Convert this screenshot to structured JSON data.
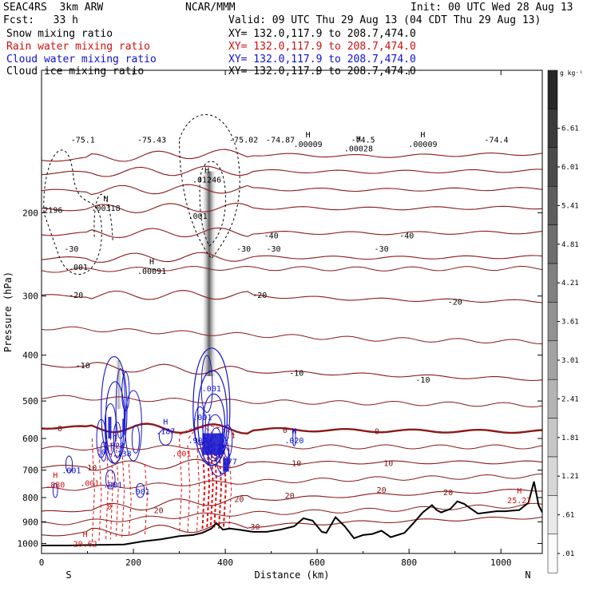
{
  "header": {
    "model": "SEAC4RS  3km ARW",
    "org": "NCAR/MMM",
    "init": "Init: 00 UTC Wed 28 Aug 13",
    "fcst": "Fcst:   33 h",
    "valid": "Valid: 09 UTC Thu 29 Aug 13 (04 CDT Thu 29 Aug 13)",
    "fields": [
      {
        "label": "Snow mixing ratio",
        "xy": "XY= 132.0,117.9 to 208.7,474.0",
        "color": "#000000"
      },
      {
        "label": "Rain water mixing ratio",
        "xy": "XY= 132.0,117.9 to 208.7,474.0",
        "color": "#d01010"
      },
      {
        "label": "Cloud water mixing ratio",
        "xy": "XY= 132.0,117.9 to 208.7,474.0",
        "color": "#1010d0"
      },
      {
        "label": "Cloud ice mixing ratio",
        "xy": "XY= 132.0,117.9 to 208.7,474.0",
        "color": "#000000"
      }
    ]
  },
  "chart_data": {
    "type": "contour",
    "xlabel": "Distance (km)",
    "ylabel": "Pressure (hPa)",
    "xlim": [
      0,
      1090
    ],
    "ylim": [
      1050,
      100
    ],
    "y_scale": "log",
    "x_ticks": [
      0,
      200,
      400,
      600,
      800,
      1000
    ],
    "y_ticks": [
      200,
      300,
      400,
      500,
      600,
      700,
      800,
      900,
      1000
    ],
    "x_end_labels": {
      "left": "S",
      "right": "N"
    },
    "colorbar": {
      "unit": "g kg⁻¹",
      "labels": [
        "6.61",
        "6.01",
        "5.41",
        "4.81",
        "4.21",
        "3.61",
        "3.01",
        "2.41",
        "1.81",
        "1.21",
        ".61",
        ".01"
      ]
    },
    "temperature_isotherms_labels": [
      {
        "text": "-75.1",
        "x": 90,
        "p": 140
      },
      {
        "text": "-75.43",
        "x": 240,
        "p": 140
      },
      {
        "text": "-75.02",
        "x": 440,
        "p": 140
      },
      {
        "text": "-74.87",
        "x": 520,
        "p": 140
      },
      {
        "text": "-74.5",
        "x": 700,
        "p": 140
      },
      {
        "text": "-74.4",
        "x": 990,
        "p": 140
      },
      {
        "text": "-40",
        "x": 500,
        "p": 223
      },
      {
        "text": "-40",
        "x": 795,
        "p": 223
      },
      {
        "text": "-30",
        "x": 65,
        "p": 238
      },
      {
        "text": "-30",
        "x": 440,
        "p": 238
      },
      {
        "text": "-30",
        "x": 505,
        "p": 238
      },
      {
        "text": "-30",
        "x": 740,
        "p": 238
      },
      {
        "text": "-20",
        "x": 75,
        "p": 298
      },
      {
        "text": "-20",
        "x": 475,
        "p": 298
      },
      {
        "text": "-20",
        "x": 900,
        "p": 308
      },
      {
        "text": "-10",
        "x": 90,
        "p": 420
      },
      {
        "text": "-10",
        "x": 555,
        "p": 435
      },
      {
        "text": "-10",
        "x": 830,
        "p": 450
      },
      {
        "text": "0",
        "x": 40,
        "p": 570
      },
      {
        "text": "0",
        "x": 530,
        "p": 575
      },
      {
        "text": "0",
        "x": 730,
        "p": 578
      },
      {
        "text": "10",
        "x": 110,
        "p": 690
      },
      {
        "text": "10",
        "x": 555,
        "p": 675
      },
      {
        "text": "10",
        "x": 755,
        "p": 675
      },
      {
        "text": "20",
        "x": 430,
        "p": 805
      },
      {
        "text": "20",
        "x": 540,
        "p": 790
      },
      {
        "text": "20",
        "x": 740,
        "p": 770
      },
      {
        "text": "20",
        "x": 885,
        "p": 778
      },
      {
        "text": "20",
        "x": 255,
        "p": 850
      },
      {
        "text": "30",
        "x": 465,
        "p": 920
      }
    ],
    "isotherm_levels": [
      {
        "label": "-75",
        "p": [
          155,
          150,
          152,
          150
        ]
      },
      {
        "label": "-70",
        "p": [
          165,
          163,
          164,
          163
        ]
      },
      {
        "label": "-60",
        "p": [
          180,
          178,
          179,
          178
        ]
      },
      {
        "label": "-50",
        "p": [
          197,
          195,
          196,
          195
        ]
      },
      {
        "label": "-40",
        "p": [
          222,
          220,
          221,
          220
        ]
      },
      {
        "label": "-30",
        "p": [
          250,
          248,
          249,
          248
        ]
      },
      {
        "label": "-20",
        "p": [
          300,
          298,
          305,
          308
        ]
      },
      {
        "label": "-10",
        "p": [
          420,
          430,
          440,
          450
        ]
      },
      {
        "label": "0",
        "p": [
          568,
          572,
          578,
          580
        ]
      },
      {
        "label": "10",
        "p": [
          690,
          678,
          674,
          674
        ]
      },
      {
        "label": "20",
        "p": [
          860,
          815,
          790,
          770
        ]
      },
      {
        "label": "30",
        "p": [
          960,
          925,
          900,
          880
        ]
      }
    ],
    "extrema": [
      {
        "kind": "H",
        "value": ".00318",
        "x": 140,
        "p": 195,
        "color": "#000000"
      },
      {
        "kind": "H",
        "value": ".00091",
        "x": 240,
        "p": 265,
        "color": "#000000"
      },
      {
        "kind": "H",
        "value": ".01246",
        "x": 360,
        "p": 170,
        "color": "#000000"
      },
      {
        "kind": "H",
        "value": ".00009",
        "x": 580,
        "p": 143,
        "color": "#000000"
      },
      {
        "kind": "H",
        "value": ".00028",
        "x": 690,
        "p": 146,
        "color": "#000000"
      },
      {
        "kind": "H",
        "value": ".00009",
        "x": 830,
        "p": 143,
        "color": "#000000"
      },
      {
        "kind": "H",
        "value": ".828",
        "x": 160,
        "p": 620,
        "color": "#1010d0"
      },
      {
        "kind": "H",
        "value": ".187",
        "x": 270,
        "p": 578,
        "color": "#1010d0"
      },
      {
        "kind": "H",
        "value": ".020",
        "x": 550,
        "p": 605,
        "color": "#1010d0"
      },
      {
        "kind": "H",
        "value": ".880",
        "x": 30,
        "p": 750,
        "color": "#d01010"
      },
      {
        "kind": "H",
        "value": "20.62",
        "x": 95,
        "p": 1000,
        "color": "#d01010"
      },
      {
        "kind": "H",
        "value": "25.27",
        "x": 1040,
        "p": 810,
        "color": "#d01010"
      }
    ],
    "field_labels": [
      {
        "text": "2196",
        "x": 25,
        "p": 197,
        "color": "#000000"
      },
      {
        "text": ".001",
        "x": 80,
        "p": 260,
        "color": "#000000"
      },
      {
        "text": ".001",
        "x": 340,
        "p": 203,
        "color": "#000000"
      },
      {
        "text": ".001",
        "x": 370,
        "p": 470,
        "color": "#1010d0"
      },
      {
        "text": ".001",
        "x": 350,
        "p": 540,
        "color": "#1010d0"
      },
      {
        "text": ".907",
        "x": 340,
        "p": 605,
        "color": "#1010d0"
      },
      {
        "text": ".0",
        "x": 130,
        "p": 640,
        "color": "#1010d0"
      },
      {
        "text": ".138",
        "x": 175,
        "p": 645,
        "color": "#1010d0"
      },
      {
        "text": ".001",
        "x": 65,
        "p": 700,
        "color": "#1010d0"
      },
      {
        "text": ".001",
        "x": 155,
        "p": 750,
        "color": "#1010d0"
      },
      {
        "text": ".001",
        "x": 215,
        "p": 775,
        "color": "#1010d0"
      },
      {
        "text": ".77",
        "x": 410,
        "p": 670,
        "color": "#1010d0"
      },
      {
        "text": ".001",
        "x": 305,
        "p": 645,
        "color": "#d01010"
      },
      {
        "text": ".001",
        "x": 105,
        "p": 745,
        "color": "#d01010"
      },
      {
        "text": "0",
        "x": 148,
        "p": 835,
        "color": "#d01010"
      },
      {
        "text": ".1",
        "x": 412,
        "p": 590,
        "color": "#d01010"
      }
    ],
    "terrain_p": [
      [
        0,
        1010
      ],
      [
        60,
        1010
      ],
      [
        100,
        1008
      ],
      [
        180,
        1005
      ],
      [
        220,
        990
      ],
      [
        260,
        980
      ],
      [
        300,
        965
      ],
      [
        330,
        960
      ],
      [
        350,
        950
      ],
      [
        370,
        930
      ],
      [
        380,
        905
      ],
      [
        395,
        935
      ],
      [
        410,
        930
      ],
      [
        430,
        935
      ],
      [
        460,
        945
      ],
      [
        490,
        945
      ],
      [
        520,
        935
      ],
      [
        550,
        920
      ],
      [
        570,
        885
      ],
      [
        590,
        895
      ],
      [
        610,
        945
      ],
      [
        620,
        950
      ],
      [
        640,
        880
      ],
      [
        660,
        920
      ],
      [
        680,
        975
      ],
      [
        700,
        960
      ],
      [
        720,
        955
      ],
      [
        740,
        940
      ],
      [
        760,
        970
      ],
      [
        790,
        950
      ],
      [
        810,
        905
      ],
      [
        830,
        860
      ],
      [
        850,
        830
      ],
      [
        860,
        850
      ],
      [
        870,
        860
      ],
      [
        890,
        845
      ],
      [
        905,
        815
      ],
      [
        920,
        825
      ],
      [
        935,
        845
      ],
      [
        950,
        865
      ],
      [
        970,
        860
      ],
      [
        990,
        855
      ],
      [
        1010,
        855
      ],
      [
        1040,
        850
      ],
      [
        1060,
        820
      ],
      [
        1072,
        740
      ],
      [
        1082,
        830
      ],
      [
        1090,
        860
      ]
    ],
    "cloud_ice_max_column": {
      "x": 365,
      "p_top": 170,
      "p_bottom": 410,
      "max": 6.61
    }
  }
}
